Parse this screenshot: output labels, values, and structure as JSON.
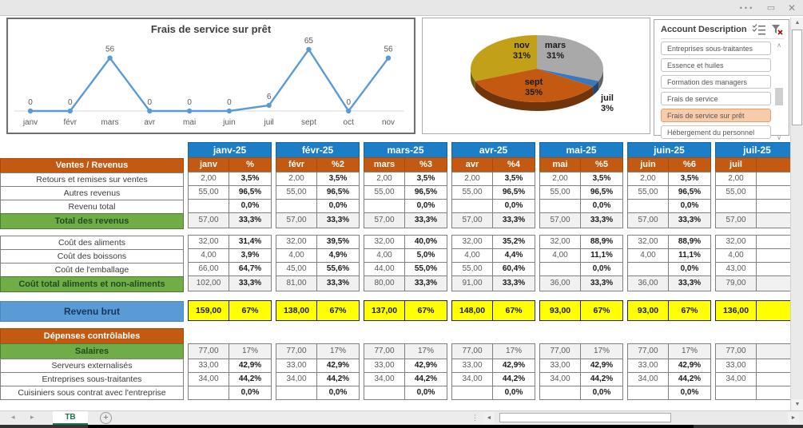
{
  "window": {
    "menu_dots": "•••",
    "restore_icon": "▭",
    "close_icon": "✕"
  },
  "chart_data": [
    {
      "type": "line",
      "title": "Frais de service sur prêt",
      "categories": [
        "janv",
        "févr",
        "mars",
        "avr",
        "mai",
        "juin",
        "juil",
        "sept",
        "oct",
        "nov"
      ],
      "values": [
        0,
        0,
        56,
        0,
        0,
        0,
        6,
        65,
        0,
        56
      ],
      "point_labels": [
        "0",
        "0",
        "56",
        "0",
        "0",
        "0",
        "6",
        "65",
        "0",
        "56"
      ],
      "xlabel": "",
      "ylabel": "",
      "ylim": [
        0,
        65
      ],
      "grid": false,
      "legend": "none",
      "line_color": "#5B9BD5"
    },
    {
      "type": "pie",
      "style": "3d",
      "slices": [
        {
          "label": "mars",
          "value": 31,
          "pct_label": "31%",
          "color": "#A9A9A9"
        },
        {
          "label": "juil",
          "value": 3,
          "pct_label": "3%",
          "color": "#3A78BC"
        },
        {
          "label": "sept",
          "value": 35,
          "pct_label": "35%",
          "color": "#C45A11"
        },
        {
          "label": "nov",
          "value": 31,
          "pct_label": "31%",
          "color": "#C2A018"
        }
      ]
    }
  ],
  "slicer": {
    "title": "Account Description",
    "icons": [
      "multi-select",
      "clear-filter"
    ],
    "items": [
      "Entreprises sous-traitantes",
      "Essence et huiles",
      "Formation des managers",
      "Frais de service",
      "Frais de service sur prêt",
      "Hébergement du personnel"
    ],
    "selected": "Frais de service sur prêt",
    "selected_bg": "#F8CBAD"
  },
  "table": {
    "months": [
      {
        "header": "janv-25",
        "sub": "janv",
        "pct_label": "%"
      },
      {
        "header": "févr-25",
        "sub": "févr",
        "pct_label": "%2"
      },
      {
        "header": "mars-25",
        "sub": "mars",
        "pct_label": "%3"
      },
      {
        "header": "avr-25",
        "sub": "avr",
        "pct_label": "%4"
      },
      {
        "header": "mai-25",
        "sub": "mai",
        "pct_label": "%5"
      },
      {
        "header": "juin-25",
        "sub": "juin",
        "pct_label": "%6"
      },
      {
        "header": "juil-25",
        "sub": "juil",
        "pct_label": ""
      }
    ],
    "rows": [
      {
        "type": "subheader",
        "label": "Ventes / Revenus"
      },
      {
        "type": "data",
        "label": "Retours et remises sur ventes",
        "cells": [
          [
            "2,00",
            "3,5%"
          ],
          [
            "2,00",
            "3,5%"
          ],
          [
            "2,00",
            "3,5%"
          ],
          [
            "2,00",
            "3,5%"
          ],
          [
            "2,00",
            "3,5%"
          ],
          [
            "2,00",
            "3,5%"
          ],
          [
            "2,00",
            ""
          ]
        ]
      },
      {
        "type": "data",
        "label": "Autres revenus",
        "cells": [
          [
            "55,00",
            "96,5%"
          ],
          [
            "55,00",
            "96,5%"
          ],
          [
            "55,00",
            "96,5%"
          ],
          [
            "55,00",
            "96,5%"
          ],
          [
            "55,00",
            "96,5%"
          ],
          [
            "55,00",
            "96,5%"
          ],
          [
            "55,00",
            ""
          ]
        ]
      },
      {
        "type": "data",
        "label": "Revenu total",
        "cells": [
          [
            "",
            "0,0%"
          ],
          [
            "",
            "0,0%"
          ],
          [
            "",
            "0,0%"
          ],
          [
            "",
            "0,0%"
          ],
          [
            "",
            "0,0%"
          ],
          [
            "",
            "0,0%"
          ],
          [
            "",
            ""
          ]
        ]
      },
      {
        "type": "total",
        "label": "Total des revenus",
        "cells": [
          [
            "57,00",
            "33,3%"
          ],
          [
            "57,00",
            "33,3%"
          ],
          [
            "57,00",
            "33,3%"
          ],
          [
            "57,00",
            "33,3%"
          ],
          [
            "57,00",
            "33,3%"
          ],
          [
            "57,00",
            "33,3%"
          ],
          [
            "57,00",
            ""
          ]
        ]
      },
      {
        "type": "data",
        "label": "Coût des aliments",
        "cells": [
          [
            "32,00",
            "31,4%"
          ],
          [
            "32,00",
            "39,5%"
          ],
          [
            "32,00",
            "40,0%"
          ],
          [
            "32,00",
            "35,2%"
          ],
          [
            "32,00",
            "88,9%"
          ],
          [
            "32,00",
            "88,9%"
          ],
          [
            "32,00",
            ""
          ]
        ]
      },
      {
        "type": "data",
        "label": "Coût des boissons",
        "cells": [
          [
            "4,00",
            "3,9%"
          ],
          [
            "4,00",
            "4,9%"
          ],
          [
            "4,00",
            "5,0%"
          ],
          [
            "4,00",
            "4,4%"
          ],
          [
            "4,00",
            "11,1%"
          ],
          [
            "4,00",
            "11,1%"
          ],
          [
            "4,00",
            ""
          ]
        ]
      },
      {
        "type": "data",
        "label": "Coût de l'emballage",
        "cells": [
          [
            "66,00",
            "64,7%"
          ],
          [
            "45,00",
            "55,6%"
          ],
          [
            "44,00",
            "55,0%"
          ],
          [
            "55,00",
            "60,4%"
          ],
          [
            "",
            "0,0%"
          ],
          [
            "",
            "0,0%"
          ],
          [
            "43,00",
            ""
          ]
        ]
      },
      {
        "type": "total",
        "label": "Coût total aliments et non-aliments",
        "cells": [
          [
            "102,00",
            "33,3%"
          ],
          [
            "81,00",
            "33,3%"
          ],
          [
            "80,00",
            "33,3%"
          ],
          [
            "91,00",
            "33,3%"
          ],
          [
            "36,00",
            "33,3%"
          ],
          [
            "36,00",
            "33,3%"
          ],
          [
            "79,00",
            ""
          ]
        ]
      },
      {
        "type": "brut",
        "label": "Revenu brut",
        "cells": [
          [
            "159,00",
            "67%"
          ],
          [
            "138,00",
            "67%"
          ],
          [
            "137,00",
            "67%"
          ],
          [
            "148,00",
            "67%"
          ],
          [
            "93,00",
            "67%"
          ],
          [
            "93,00",
            "67%"
          ],
          [
            "136,00",
            ""
          ]
        ]
      },
      {
        "type": "section",
        "label": "Dépenses contrôlables"
      },
      {
        "type": "total",
        "muted": true,
        "label": "Salaires",
        "cells": [
          [
            "77,00",
            "17%"
          ],
          [
            "77,00",
            "17%"
          ],
          [
            "77,00",
            "17%"
          ],
          [
            "77,00",
            "17%"
          ],
          [
            "77,00",
            "17%"
          ],
          [
            "77,00",
            "17%"
          ],
          [
            "77,00",
            ""
          ]
        ]
      },
      {
        "type": "data",
        "label": "Serveurs externalisés",
        "cells": [
          [
            "33,00",
            "42,9%"
          ],
          [
            "33,00",
            "42,9%"
          ],
          [
            "33,00",
            "42,9%"
          ],
          [
            "33,00",
            "42,9%"
          ],
          [
            "33,00",
            "42,9%"
          ],
          [
            "33,00",
            "42,9%"
          ],
          [
            "33,00",
            ""
          ]
        ]
      },
      {
        "type": "data",
        "label": "Entreprises sous-traitantes",
        "cells": [
          [
            "34,00",
            "44,2%"
          ],
          [
            "34,00",
            "44,2%"
          ],
          [
            "34,00",
            "44,2%"
          ],
          [
            "34,00",
            "44,2%"
          ],
          [
            "34,00",
            "44,2%"
          ],
          [
            "34,00",
            "44,2%"
          ],
          [
            "34,00",
            ""
          ]
        ]
      },
      {
        "type": "data",
        "label": "Cuisiniers sous contrat avec l'entreprise",
        "cells": [
          [
            "",
            "0,0%"
          ],
          [
            "",
            "0,0%"
          ],
          [
            "",
            "0,0%"
          ],
          [
            "",
            "0,0%"
          ],
          [
            "",
            "0,0%"
          ],
          [
            "",
            "0,0%"
          ],
          [
            "",
            ""
          ]
        ]
      }
    ]
  },
  "sheet_bar": {
    "nav_left": "◂",
    "nav_right": "▸",
    "tab": "TB",
    "add": "+"
  },
  "colors": {
    "month_header_blue": "#1B7EC6",
    "section_orange": "#C45A11",
    "total_green": "#70AD47",
    "total_green_text": "#1E4D20",
    "brut_blue": "#5B9BD5",
    "brut_text": "#17375E",
    "brut_cell_yellow": "#FFFF00",
    "active_tab_green": "#217346"
  }
}
